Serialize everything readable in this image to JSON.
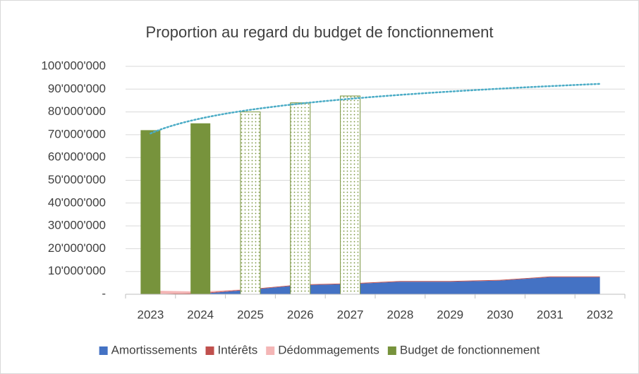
{
  "chart_data": {
    "type": "combo",
    "title": "Proportion au regard du budget de fonctionnement",
    "categories": [
      "2023",
      "2024",
      "2025",
      "2026",
      "2027",
      "2028",
      "2029",
      "2030",
      "2031",
      "2032"
    ],
    "series": [
      {
        "name": "Amortissements",
        "type": "area",
        "color": "#4472c4",
        "values": [
          0,
          200000,
          2000000,
          4000000,
          4500000,
          5500000,
          5500000,
          6000000,
          7500000,
          7500000
        ]
      },
      {
        "name": "Intérêts",
        "type": "area",
        "color": "#c0504d",
        "values": [
          100000,
          300000,
          300000,
          300000,
          300000,
          300000,
          300000,
          300000,
          300000,
          300000
        ]
      },
      {
        "name": "Dédommagements",
        "type": "area",
        "color": "#f4b6b6",
        "values": [
          1500000,
          700000,
          0,
          0,
          0,
          0,
          0,
          0,
          0,
          0
        ]
      },
      {
        "name": "Budget de fonctionnement",
        "type": "bar",
        "color": "#77933c",
        "values": [
          72000000,
          75000000,
          80000000,
          84000000,
          87000000,
          null,
          null,
          null,
          null,
          null
        ],
        "fill_styles": [
          "solid",
          "solid",
          "dotted",
          "dotted",
          "dotted",
          null,
          null,
          null,
          null,
          null
        ]
      }
    ],
    "trendline": {
      "series": 3,
      "type": "logarithmic",
      "color": "#4bacc6"
    },
    "ylim": [
      0,
      100000000
    ],
    "yticks": [
      {
        "value": 0,
        "label": "-"
      },
      {
        "value": 10000000,
        "label": "10'000'000"
      },
      {
        "value": 20000000,
        "label": "20'000'000"
      },
      {
        "value": 30000000,
        "label": "30'000'000"
      },
      {
        "value": 40000000,
        "label": "40'000'000"
      },
      {
        "value": 50000000,
        "label": "50'000'000"
      },
      {
        "value": 60000000,
        "label": "60'000'000"
      },
      {
        "value": 70000000,
        "label": "70'000'000"
      },
      {
        "value": 80000000,
        "label": "80'000'000"
      },
      {
        "value": 90000000,
        "label": "90'000'000"
      },
      {
        "value": 100000000,
        "label": "100'000'000"
      }
    ],
    "grid": true,
    "legend": "bottom"
  }
}
